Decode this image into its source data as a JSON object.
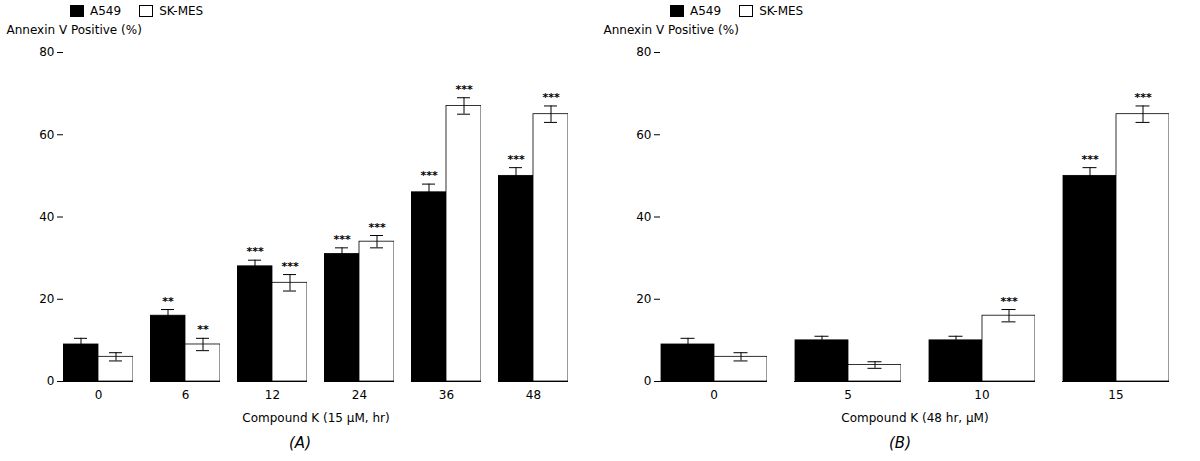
{
  "chart_data": [
    {
      "type": "bar",
      "categories": [
        "0",
        "6",
        "12",
        "24",
        "36",
        "48"
      ],
      "series": [
        {
          "name": "A549",
          "color": "#000000",
          "values": [
            9,
            16,
            28,
            31,
            46,
            50
          ],
          "errors": [
            1.5,
            1.5,
            1.5,
            1.5,
            2.0,
            2.0
          ],
          "significance": [
            null,
            "**",
            "***",
            "***",
            "***",
            "***"
          ]
        },
        {
          "name": "SK-MES",
          "color": "#ffffff",
          "values": [
            6,
            9,
            24,
            34,
            67,
            65
          ],
          "errors": [
            1.0,
            1.5,
            2.0,
            1.5,
            2.0,
            2.0
          ],
          "significance": [
            null,
            "**",
            "***",
            "***",
            "***",
            "***"
          ]
        }
      ],
      "xlabel": "Compound K (15 μM, hr)",
      "ylabel": "Annexin V Positive (%)",
      "ylim": [
        0,
        80
      ],
      "yticks": [
        0,
        20,
        40,
        60,
        80
      ],
      "panel_label": "(A)",
      "legend": "upper left",
      "grid": false
    },
    {
      "type": "bar",
      "categories": [
        "0",
        "5",
        "10",
        "15"
      ],
      "series": [
        {
          "name": "A549",
          "color": "#000000",
          "values": [
            9,
            10,
            10,
            50
          ],
          "errors": [
            1.5,
            1.0,
            1.0,
            2.0
          ],
          "significance": [
            null,
            null,
            null,
            "***"
          ]
        },
        {
          "name": "SK-MES",
          "color": "#ffffff",
          "values": [
            6,
            4,
            16,
            65
          ],
          "errors": [
            1.0,
            0.8,
            1.5,
            2.0
          ],
          "significance": [
            null,
            null,
            "***",
            "***"
          ]
        }
      ],
      "xlabel": "Compound K (48 hr, μM)",
      "ylabel": "Annexin V Positive (%)",
      "ylim": [
        0,
        80
      ],
      "yticks": [
        0,
        20,
        40,
        60,
        80
      ],
      "panel_label": "(B)",
      "legend": "upper left",
      "grid": false
    }
  ]
}
